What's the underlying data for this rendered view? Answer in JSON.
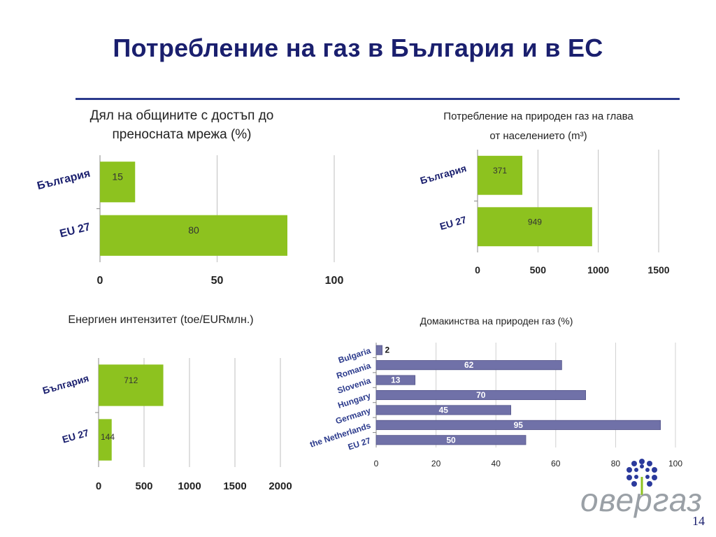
{
  "slide": {
    "title": "Потребление на газ в България и в ЕС",
    "page_number": "14",
    "logo_text": "овергаз"
  },
  "chart_data": [
    {
      "type": "bar",
      "orientation": "horizontal",
      "title_lines": [
        "Дял на общините с достъп до",
        "преносната мрежа (%)"
      ],
      "categories": [
        "България",
        "EU 27"
      ],
      "values": [
        15,
        80
      ],
      "xlim": [
        0,
        100
      ],
      "xticks": [
        0,
        50,
        100
      ],
      "color": "#8dc21f",
      "grid": true
    },
    {
      "type": "bar",
      "orientation": "horizontal",
      "title_lines": [
        "Потребление на природен газ на глава",
        "от населението (m³)"
      ],
      "categories": [
        "България",
        "EU 27"
      ],
      "values": [
        371,
        949
      ],
      "xlim": [
        0,
        1500
      ],
      "xticks": [
        0,
        500,
        1000,
        1500
      ],
      "color": "#8dc21f",
      "grid": true
    },
    {
      "type": "bar",
      "orientation": "horizontal",
      "title_lines": [
        "Енергиен интензитет (toe/EURмлн.)"
      ],
      "categories": [
        "България",
        "EU 27"
      ],
      "values": [
        712,
        144
      ],
      "xlim": [
        0,
        2000
      ],
      "xticks": [
        0,
        500,
        1000,
        1500,
        2000
      ],
      "color": "#8dc21f",
      "grid": true
    },
    {
      "type": "bar",
      "orientation": "horizontal",
      "title_lines": [
        "Домакинства на природен газ (%)"
      ],
      "categories": [
        "Bulgaria",
        "Romania",
        "Slovenia",
        "Hungary",
        "Germany",
        "the Netherlands",
        "EU 27"
      ],
      "values": [
        2,
        62,
        13,
        70,
        45,
        95,
        50
      ],
      "xlim": [
        0,
        100
      ],
      "xticks": [
        0,
        20,
        40,
        60,
        80,
        100
      ],
      "color": "#7071a8",
      "grid": true
    }
  ]
}
